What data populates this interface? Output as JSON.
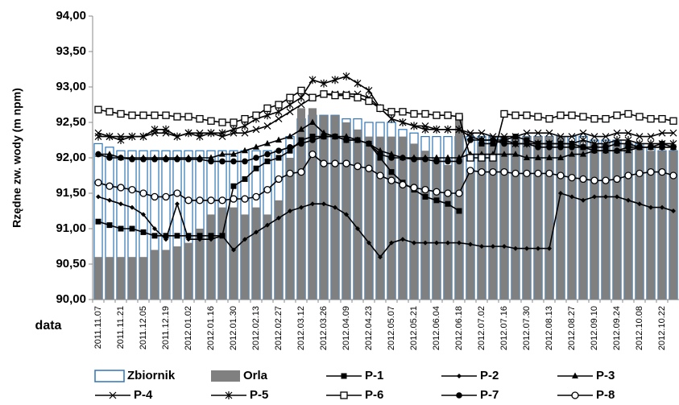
{
  "chart_data": {
    "type": "combo",
    "y_label": "Rzędne zw. wody (m npm)",
    "x_label": "data",
    "ylim": [
      90,
      94
    ],
    "yticks": [
      {
        "value": 90,
        "label": "90,00"
      },
      {
        "value": 90.5,
        "label": "90,50"
      },
      {
        "value": 91,
        "label": "91,00"
      },
      {
        "value": 91.5,
        "label": "91,50"
      },
      {
        "value": 92,
        "label": "92,00"
      },
      {
        "value": 92.5,
        "label": "92,50"
      },
      {
        "value": 93,
        "label": "93,00"
      },
      {
        "value": 93.5,
        "label": "93,50"
      },
      {
        "value": 94,
        "label": "94,00"
      }
    ],
    "categories": [
      "2011.11.07",
      null,
      "2011.11.21",
      null,
      "2011.12.05",
      null,
      "2011.12.19",
      null,
      "2012.01.02",
      null,
      "2012.01.16",
      null,
      "2012.01.30",
      null,
      "2012.02.13",
      null,
      "2012.02.27",
      null,
      "2012.03.12",
      null,
      "2012.03.26",
      null,
      "2012.04.09",
      null,
      "2012.04.23",
      null,
      "2012.05.07",
      null,
      "2012.05.21",
      null,
      "2012.06.04",
      null,
      "2012.06.18",
      null,
      "2012.07.02",
      null,
      "2012.07.16",
      null,
      "2012.07.30",
      null,
      "2012.08.13",
      null,
      "2012.08.27",
      null,
      "2012.09.10",
      null,
      "2012.09.24",
      null,
      "2012.10.08",
      null,
      "2012.10.22",
      null
    ],
    "series": [
      {
        "name": "Zbiornik",
        "type": "bar",
        "color": "#2e75b6",
        "values": [
          92.2,
          92.15,
          92.1,
          92.1,
          92.1,
          92.1,
          92.1,
          92.1,
          92.1,
          92.1,
          92.1,
          92.1,
          92.1,
          92.1,
          92.1,
          92.1,
          92.1,
          92.3,
          92.55,
          92.6,
          92.6,
          92.6,
          92.55,
          92.55,
          92.5,
          92.5,
          92.5,
          92.4,
          92.35,
          92.3,
          92.3,
          92.3,
          92.3,
          92.3,
          92.3,
          92.3,
          92.3,
          92.3,
          92.3,
          92.3,
          92.3,
          92.3,
          92.3,
          92.3,
          92.25,
          92.25,
          92.25,
          92.2,
          92.2,
          92.15,
          92.1,
          92.1
        ]
      },
      {
        "name": "Orla",
        "type": "bar",
        "color": "#808080",
        "values": [
          90.6,
          90.6,
          90.6,
          90.6,
          90.6,
          90.7,
          90.7,
          90.75,
          90.8,
          91.0,
          91.2,
          91.3,
          91.3,
          91.2,
          91.3,
          91.2,
          91.4,
          92.0,
          92.7,
          92.7,
          92.6,
          92.6,
          92.5,
          92.4,
          92.3,
          92.3,
          92.3,
          92.3,
          92.2,
          92.1,
          92.0,
          91.9,
          92.6,
          91.8,
          92.2,
          92.2,
          92.3,
          92.3,
          92.3,
          92.3,
          92.3,
          92.3,
          92.2,
          92.2,
          92.2,
          92.2,
          92.2,
          92.2,
          92.15,
          92.1,
          92.1,
          92.1
        ]
      },
      {
        "name": "P-1",
        "type": "line",
        "marker": "square",
        "color": "#000000",
        "values": [
          91.1,
          91.05,
          91.0,
          91.0,
          90.95,
          90.9,
          90.9,
          90.9,
          90.9,
          90.9,
          90.9,
          90.9,
          91.6,
          91.7,
          91.85,
          91.95,
          92.0,
          92.1,
          92.25,
          92.3,
          92.3,
          92.3,
          92.25,
          92.25,
          92.2,
          92.0,
          91.8,
          91.65,
          91.55,
          91.45,
          91.4,
          91.35,
          91.25,
          null,
          92.2,
          92.2,
          92.25,
          92.3,
          92.25,
          92.2,
          92.2,
          92.2,
          92.2,
          92.15,
          92.15,
          92.15,
          92.2,
          92.2,
          92.15,
          92.15,
          92.2,
          92.15
        ]
      },
      {
        "name": "P-2",
        "type": "line",
        "marker": "diamond",
        "color": "#000000",
        "values": [
          91.45,
          91.4,
          91.35,
          91.3,
          91.2,
          91.0,
          90.85,
          91.35,
          90.85,
          90.85,
          90.85,
          90.9,
          90.7,
          90.85,
          90.95,
          91.05,
          91.15,
          91.25,
          91.3,
          91.35,
          91.35,
          91.3,
          91.2,
          91.0,
          90.8,
          90.6,
          90.8,
          90.85,
          90.8,
          90.8,
          90.8,
          90.8,
          90.8,
          90.78,
          90.75,
          90.75,
          90.75,
          90.72,
          90.72,
          90.72,
          90.72,
          91.5,
          91.45,
          91.4,
          91.45,
          91.45,
          91.45,
          91.4,
          91.35,
          91.3,
          91.3,
          91.25
        ]
      },
      {
        "name": "P-3",
        "type": "line",
        "marker": "triangle",
        "color": "#000000",
        "values": [
          92.05,
          92.05,
          92.0,
          92.0,
          92.0,
          92.0,
          92.0,
          92.0,
          92.0,
          92.0,
          92.0,
          92.05,
          92.05,
          92.1,
          92.15,
          92.2,
          92.25,
          92.3,
          92.4,
          92.5,
          92.35,
          92.3,
          92.3,
          92.25,
          92.2,
          92.1,
          92.05,
          92.0,
          92.0,
          92.0,
          92.0,
          92.0,
          92.0,
          92.05,
          92.05,
          92.05,
          92.05,
          92.05,
          92.0,
          92.0,
          92.0,
          92.0,
          92.05,
          92.05,
          92.1,
          92.1,
          92.1,
          92.1,
          92.15,
          92.15,
          92.15,
          92.15
        ]
      },
      {
        "name": "P-4",
        "type": "line",
        "marker": "x",
        "color": "#000000",
        "values": [
          92.35,
          92.3,
          92.3,
          92.3,
          92.3,
          92.35,
          92.35,
          92.3,
          92.35,
          92.35,
          92.35,
          92.3,
          92.35,
          92.35,
          92.4,
          92.45,
          92.55,
          92.65,
          92.75,
          92.85,
          92.9,
          92.9,
          92.9,
          92.9,
          92.85,
          92.7,
          92.55,
          92.5,
          92.45,
          92.45,
          92.4,
          92.4,
          92.4,
          92.35,
          92.35,
          92.3,
          92.3,
          92.3,
          92.35,
          92.35,
          92.35,
          92.3,
          92.3,
          92.35,
          92.3,
          92.3,
          92.35,
          92.35,
          92.3,
          92.3,
          92.35,
          92.35
        ]
      },
      {
        "name": "P-5",
        "type": "line",
        "marker": "asterisk",
        "color": "#000000",
        "values": [
          92.3,
          92.3,
          92.25,
          92.3,
          92.3,
          92.4,
          92.4,
          92.3,
          92.35,
          92.3,
          92.35,
          92.35,
          92.4,
          92.45,
          92.55,
          92.6,
          92.65,
          92.75,
          92.85,
          93.1,
          93.05,
          93.1,
          93.15,
          93.05,
          92.95,
          92.7,
          92.55,
          92.5,
          92.45,
          92.4,
          92.4,
          92.4,
          92.4,
          92.3,
          92.25,
          92.25,
          92.25,
          92.2,
          92.2,
          92.2,
          92.2,
          92.2,
          92.2,
          92.25,
          92.2,
          92.2,
          92.25,
          92.25,
          92.2,
          92.2,
          92.2,
          92.2
        ]
      },
      {
        "name": "P-6",
        "type": "line",
        "marker": "open-square",
        "color": "#000000",
        "values": [
          92.68,
          92.65,
          92.62,
          92.6,
          92.6,
          92.6,
          92.6,
          92.58,
          92.58,
          92.55,
          92.52,
          92.5,
          92.5,
          92.55,
          92.6,
          92.7,
          92.75,
          92.85,
          92.95,
          92.85,
          92.9,
          92.88,
          92.88,
          92.85,
          92.8,
          92.7,
          92.65,
          92.65,
          92.62,
          92.62,
          92.6,
          92.6,
          92.58,
          92.0,
          92.0,
          92.0,
          92.62,
          92.6,
          92.6,
          92.58,
          92.55,
          92.6,
          92.6,
          92.58,
          92.55,
          92.55,
          92.6,
          92.62,
          92.58,
          92.55,
          92.55,
          92.52
        ]
      },
      {
        "name": "P-7",
        "type": "line",
        "marker": "circle",
        "color": "#000000",
        "values": [
          92.05,
          92.0,
          92.0,
          91.98,
          91.98,
          91.98,
          91.98,
          91.98,
          91.98,
          91.98,
          91.95,
          91.95,
          91.95,
          91.95,
          92.0,
          92.05,
          92.1,
          92.15,
          92.2,
          92.25,
          92.3,
          92.3,
          92.25,
          92.25,
          92.2,
          92.05,
          92.0,
          92.0,
          91.98,
          91.98,
          91.95,
          91.95,
          91.95,
          92.25,
          92.25,
          92.25,
          92.2,
          92.2,
          92.2,
          92.15,
          92.15,
          92.15,
          92.15,
          92.15,
          92.1,
          92.1,
          92.1,
          92.15,
          92.15,
          92.15,
          92.15,
          92.15
        ]
      },
      {
        "name": "P-8",
        "type": "line",
        "marker": "open-circle",
        "color": "#000000",
        "values": [
          91.65,
          91.6,
          91.58,
          91.55,
          91.5,
          91.45,
          91.45,
          91.5,
          91.4,
          91.4,
          91.4,
          91.4,
          91.42,
          91.42,
          91.45,
          91.55,
          91.7,
          91.78,
          91.8,
          92.05,
          91.92,
          91.92,
          91.92,
          91.88,
          91.85,
          91.75,
          91.68,
          91.62,
          91.58,
          91.55,
          91.52,
          91.5,
          91.5,
          91.82,
          91.8,
          91.8,
          91.8,
          91.78,
          91.78,
          91.78,
          91.78,
          91.75,
          91.72,
          91.7,
          91.68,
          91.68,
          91.7,
          91.75,
          91.78,
          91.8,
          91.8,
          91.75
        ]
      }
    ]
  }
}
